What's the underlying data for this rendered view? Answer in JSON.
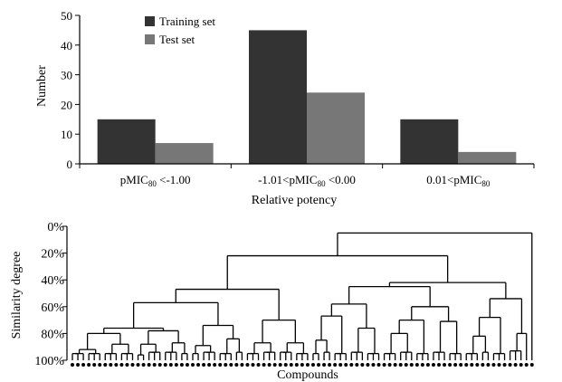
{
  "chart_data": [
    {
      "type": "bar",
      "ylabel": "Number",
      "xlabel": "Relative potency",
      "ylim": [
        0,
        50
      ],
      "yticks": [
        0,
        10,
        20,
        30,
        40,
        50
      ],
      "categories": [
        {
          "pre": "pMIC",
          "sub": "80",
          "post": " <-1.00"
        },
        {
          "pre": "-1.01<pMIC",
          "sub": "80",
          "post": " <0.00"
        },
        {
          "pre": "0.01<pMIC",
          "sub": "80",
          "post": ""
        }
      ],
      "series": [
        {
          "name": "Training set",
          "color": "#333333",
          "values": [
            15,
            45,
            15
          ]
        },
        {
          "name": "Test set",
          "color": "#777777",
          "values": [
            7,
            24,
            4
          ]
        }
      ],
      "legend": "top-left",
      "grid": false
    },
    {
      "type": "dendrogram",
      "ylabel": "Similarity degree",
      "xlabel": "Compounds",
      "yticks": [
        "0%",
        "20%",
        "40%",
        "60%",
        "80%",
        "100%"
      ],
      "ylim": [
        0,
        100
      ],
      "leaf_count": 90,
      "root_similarity": 5,
      "top_split_similarity": [
        22,
        42,
        47
      ]
    }
  ]
}
